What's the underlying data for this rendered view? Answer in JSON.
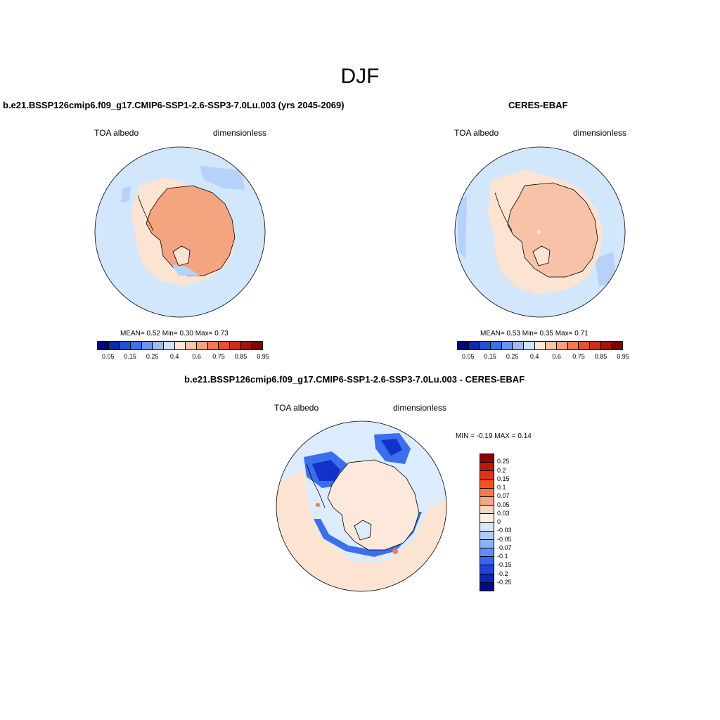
{
  "season": "DJF",
  "panels": [
    {
      "title": "b.e21.BSSP126cmip6.f09_g17.CMIP6-SSP1-2.6-SSP3-7.0Lu.003 (yrs 2045-2069)",
      "variable": "TOA albedo",
      "units": "dimensionless",
      "stats": "MEAN=   0.52  Min=   0.30  Max=   0.73"
    },
    {
      "title": "CERES-EBAF",
      "variable": "TOA albedo",
      "units": "dimensionless",
      "stats": "MEAN=   0.53  Min=   0.35  Max=   0.71"
    },
    {
      "title": "b.e21.BSSP126cmip6.f09_g17.CMIP6-SSP1-2.6-SSP3-7.0Lu.003 - CERES-EBAF",
      "variable": "TOA albedo",
      "units": "dimensionless",
      "stats": "MIN =  -0.19 MAX =   0.14"
    }
  ],
  "colorbar_abs": {
    "colors": [
      "#00007f",
      "#0a2ab0",
      "#1f4fdc",
      "#3b6fee",
      "#6a95f2",
      "#9dbcf6",
      "#cfe3fb",
      "#fde6d6",
      "#fcc3a6",
      "#f9a07e",
      "#f47752",
      "#ea4f2f",
      "#cf2d17",
      "#a41306",
      "#7f0000"
    ],
    "labels": [
      "0.05",
      "0.15",
      "0.25",
      "0.4",
      "0.6",
      "0.75",
      "0.85",
      "0.95"
    ]
  },
  "colorbar_diff": {
    "colors": [
      "#8b0000",
      "#b51d0a",
      "#dc3414",
      "#f45222",
      "#f47c52",
      "#f6a583",
      "#fcd6c0",
      "#fdeee6",
      "#d6e7fb",
      "#b1cdf6",
      "#8cb1f2",
      "#5f8ff0",
      "#3766e8",
      "#1f44d2",
      "#0c24b0",
      "#000c80"
    ],
    "labels": [
      "0.25",
      "0.2",
      "0.15",
      "0.1",
      "0.07",
      "0.05",
      "0.03",
      "0",
      "-0.03",
      "-0.05",
      "-0.07",
      "-0.1",
      "-0.15",
      "-0.2",
      "-0.25"
    ]
  },
  "map_colors": {
    "ocean": "#d2e7fb",
    "ocean_pale_blue": "#b6d2f8",
    "ice_shelf": "#fde3d2",
    "continent": "#f4a580",
    "continent_ceres": "#f7c2a8",
    "diff_bg": "#dcecfc",
    "diff_pos": "#fde3d2",
    "diff_pos2": "#f9c0a0",
    "diff_neg": "#3b6fee",
    "diff_neg_dark": "#1232c8"
  }
}
